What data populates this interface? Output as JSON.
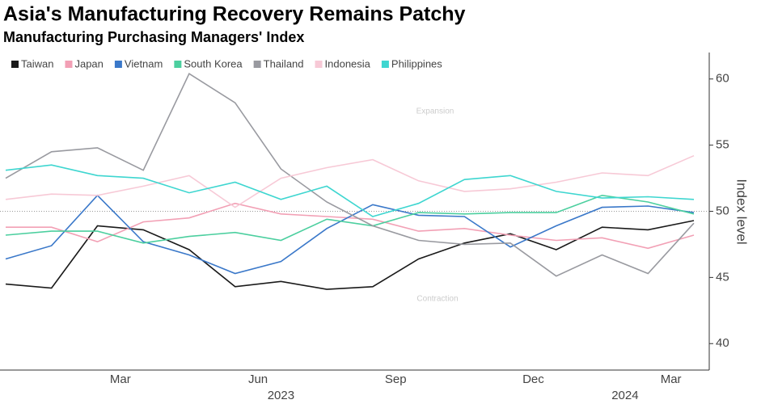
{
  "chart_data": {
    "type": "line",
    "title": "Asia's Manufacturing Recovery Remains Patchy",
    "subtitle": "Manufacturing Purchasing Managers' Index",
    "y_axis_label": "Index level",
    "annotations": [
      "Expansion",
      "Contraction"
    ],
    "categories": [
      null,
      null,
      null,
      "Mar",
      null,
      null,
      "Jun",
      null,
      null,
      "Sep",
      null,
      null,
      "Dec",
      null,
      null,
      "Mar"
    ],
    "years": [
      {
        "name": "2023",
        "from": 1,
        "to": 12
      },
      {
        "name": "2024",
        "from": 13,
        "to": 15
      }
    ],
    "ylim": [
      38,
      62
    ],
    "yticks": [
      40,
      45,
      50,
      55,
      60
    ],
    "reference_line": 50,
    "grid": false,
    "legend": "top-left",
    "series": [
      {
        "name": "Taiwan",
        "color": "#1a1a1a",
        "values": [
          44.5,
          44.2,
          48.9,
          48.6,
          47.1,
          44.3,
          44.7,
          44.1,
          44.3,
          46.4,
          47.6,
          48.3,
          47.1,
          48.8,
          48.6,
          49.3
        ]
      },
      {
        "name": "Japan",
        "color": "#f2a0b5",
        "values": [
          48.8,
          48.8,
          47.7,
          49.2,
          49.5,
          50.6,
          49.8,
          49.6,
          49.4,
          48.5,
          48.7,
          48.2,
          47.8,
          48.0,
          47.2,
          48.2
        ]
      },
      {
        "name": "Vietnam",
        "color": "#3a78c9",
        "values": [
          46.4,
          47.4,
          51.2,
          47.7,
          46.7,
          45.3,
          46.2,
          48.7,
          50.5,
          49.7,
          49.6,
          47.3,
          48.9,
          50.3,
          50.4,
          49.9
        ]
      },
      {
        "name": "South Korea",
        "color": "#4ccf9f",
        "values": [
          48.2,
          48.5,
          48.5,
          47.6,
          48.1,
          48.4,
          47.8,
          49.4,
          48.9,
          49.9,
          49.8,
          49.9,
          49.9,
          51.2,
          50.7,
          49.8
        ]
      },
      {
        "name": "Thailand",
        "color": "#999aa0",
        "values": [
          52.5,
          54.5,
          54.8,
          53.1,
          60.4,
          58.2,
          53.2,
          50.7,
          48.9,
          47.8,
          47.5,
          47.6,
          45.1,
          46.7,
          45.3,
          49.1
        ]
      },
      {
        "name": "Indonesia",
        "color": "#f7c9d6",
        "values": [
          50.9,
          51.3,
          51.2,
          51.9,
          52.7,
          50.3,
          52.5,
          53.3,
          53.9,
          52.3,
          51.5,
          51.7,
          52.2,
          52.9,
          52.7,
          54.2
        ]
      },
      {
        "name": "Philippines",
        "color": "#3ed6d0",
        "values": [
          53.1,
          53.5,
          52.7,
          52.5,
          51.4,
          52.2,
          50.9,
          51.9,
          49.6,
          50.6,
          52.4,
          52.7,
          51.5,
          51.0,
          51.1,
          50.9
        ]
      }
    ]
  }
}
